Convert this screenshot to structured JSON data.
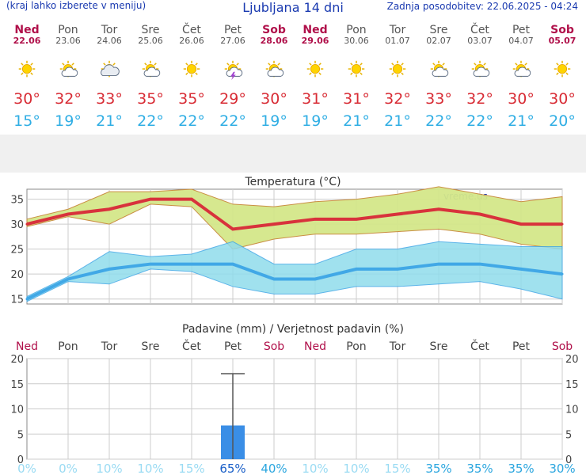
{
  "header": {
    "menu_note": "(kraj lahko izberete v meniju)",
    "title": "Ljubljana 14 dni",
    "updated": "Zadnja posodobitev: 22.06.2025 - 04:24"
  },
  "days": [
    {
      "name": "Ned",
      "date": "22.06",
      "weekend": true,
      "icon": "sun-icon",
      "tmax": "30°",
      "tmin": "15°"
    },
    {
      "name": "Pon",
      "date": "23.06",
      "weekend": false,
      "icon": "sun-cloud-icon",
      "tmax": "32°",
      "tmin": "19°"
    },
    {
      "name": "Tor",
      "date": "24.06",
      "weekend": false,
      "icon": "cloudy-sun-icon",
      "tmax": "33°",
      "tmin": "21°"
    },
    {
      "name": "Sre",
      "date": "25.06",
      "weekend": false,
      "icon": "sun-cloud-icon",
      "tmax": "35°",
      "tmin": "22°"
    },
    {
      "name": "Čet",
      "date": "26.06",
      "weekend": false,
      "icon": "sun-icon",
      "tmax": "35°",
      "tmin": "22°"
    },
    {
      "name": "Pet",
      "date": "27.06",
      "weekend": false,
      "icon": "thunderstorm-icon",
      "tmax": "29°",
      "tmin": "22°"
    },
    {
      "name": "Sob",
      "date": "28.06",
      "weekend": true,
      "icon": "sun-cloud-icon",
      "tmax": "30°",
      "tmin": "19°"
    },
    {
      "name": "Ned",
      "date": "29.06",
      "weekend": true,
      "icon": "sun-icon",
      "tmax": "31°",
      "tmin": "19°"
    },
    {
      "name": "Pon",
      "date": "30.06",
      "weekend": false,
      "icon": "sun-icon",
      "tmax": "31°",
      "tmin": "21°"
    },
    {
      "name": "Tor",
      "date": "01.07",
      "weekend": false,
      "icon": "sun-icon",
      "tmax": "32°",
      "tmin": "21°"
    },
    {
      "name": "Sre",
      "date": "02.07",
      "weekend": false,
      "icon": "sun-cloud-icon",
      "tmax": "33°",
      "tmin": "22°"
    },
    {
      "name": "Čet",
      "date": "03.07",
      "weekend": false,
      "icon": "sun-cloud-icon",
      "tmax": "32°",
      "tmin": "22°"
    },
    {
      "name": "Pet",
      "date": "04.07",
      "weekend": false,
      "icon": "sun-cloud-icon",
      "tmax": "30°",
      "tmin": "21°"
    },
    {
      "name": "Sob",
      "date": "05.07",
      "weekend": true,
      "icon": "sun-icon",
      "tmax": "30°",
      "tmin": "20°"
    }
  ],
  "colors": {
    "max_line": "#d8323c",
    "max_band": "#d4e78a",
    "min_line": "#41a8e6",
    "min_band": "#90dcec",
    "weekend": "#b0104a",
    "bar": "#3a8ee6",
    "prob_low": "#9adbf3",
    "prob_mid": "#2ba6df",
    "prob_high": "#1a5fc8"
  },
  "chart_data": [
    {
      "type": "line",
      "title": "Temperatura (°C)",
      "watermark": "vreme.us",
      "ylim": [
        14,
        37
      ],
      "yticks": [
        15,
        20,
        25,
        30,
        35
      ],
      "grid": true,
      "series": [
        {
          "name": "max",
          "values": [
            30,
            32,
            33,
            35,
            35,
            29,
            30,
            31,
            31,
            32,
            33,
            32,
            30,
            30
          ],
          "band_low": [
            29.5,
            31.5,
            30,
            34,
            33.5,
            25,
            27,
            28,
            28,
            28.5,
            29,
            28,
            26,
            25
          ],
          "band_high": [
            31,
            33,
            36.5,
            36.5,
            37,
            34,
            33.5,
            34.5,
            35,
            36,
            37.5,
            36,
            34.5,
            35.5
          ]
        },
        {
          "name": "min",
          "values": [
            15,
            19,
            21,
            22,
            22,
            22,
            19,
            19,
            21,
            21,
            22,
            22,
            21,
            20
          ],
          "band_low": [
            14.5,
            18.5,
            18,
            21,
            20.5,
            17.5,
            16,
            16,
            17.5,
            17.5,
            18,
            18.5,
            17,
            15
          ],
          "band_high": [
            15.5,
            19.5,
            24.5,
            23.5,
            24,
            26.5,
            22,
            22,
            25,
            25,
            26.5,
            26,
            25.5,
            25.5
          ]
        }
      ]
    },
    {
      "type": "bar",
      "title": "Padavine (mm) / Verjetnost padavin (%)",
      "categories": [
        "Ned",
        "Pon",
        "Tor",
        "Sre",
        "Čet",
        "Pet",
        "Sob",
        "Ned",
        "Pon",
        "Tor",
        "Sre",
        "Čet",
        "Pet",
        "Sob"
      ],
      "weekend": [
        true,
        false,
        false,
        false,
        false,
        false,
        true,
        true,
        false,
        false,
        false,
        false,
        false,
        true
      ],
      "ylim": [
        0,
        20
      ],
      "yticks": [
        0,
        5,
        10,
        15,
        20
      ],
      "grid": true,
      "precip_mm": [
        0,
        0,
        0,
        0,
        0,
        6.7,
        0,
        0,
        0,
        0,
        0,
        0,
        0,
        0
      ],
      "error_high": [
        0,
        0,
        0,
        0,
        0,
        17,
        0,
        0,
        0,
        0,
        0,
        0,
        0,
        0
      ],
      "probability": [
        "0%",
        "0%",
        "10%",
        "10%",
        "15%",
        "65%",
        "40%",
        "10%",
        "10%",
        "15%",
        "35%",
        "35%",
        "35%",
        "30%"
      ]
    }
  ]
}
